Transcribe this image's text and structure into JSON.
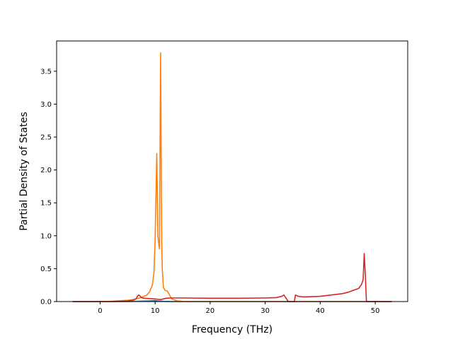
{
  "chart_data": {
    "type": "line",
    "title": "",
    "xlabel": "Frequency (THz)",
    "ylabel": "Partial Density of States",
    "xlim": [
      -7.9,
      55.9
    ],
    "ylim": [
      0,
      3.96
    ],
    "xticks": [
      0,
      10,
      20,
      30,
      40,
      50
    ],
    "yticks": [
      0.0,
      0.5,
      1.0,
      1.5,
      2.0,
      2.5,
      3.0,
      3.5
    ],
    "xtick_labels": [
      "0",
      "10",
      "20",
      "30",
      "40",
      "50"
    ],
    "ytick_labels": [
      "0.0",
      "0.5",
      "1.0",
      "1.5",
      "2.0",
      "2.5",
      "3.0",
      "3.5"
    ],
    "grid": false,
    "legend": "none",
    "series": [
      {
        "color": "#1f77b4",
        "x": [
          -5,
          0,
          5,
          7,
          9,
          10,
          10.5,
          11,
          11.5,
          12,
          13,
          53
        ],
        "y": [
          0,
          0,
          0,
          0.005,
          0.01,
          0.015,
          0.01,
          0.008,
          0.004,
          0.002,
          0,
          0
        ]
      },
      {
        "color": "#ff7f0e",
        "x": [
          -5,
          0,
          2,
          4,
          5,
          6,
          7,
          8,
          8.5,
          9,
          9.5,
          9.8,
          10,
          10.3,
          10.5,
          10.7,
          10.8,
          10.9,
          11.0,
          11.1,
          11.2,
          11.3,
          11.5,
          11.8,
          12.2,
          12.5,
          13,
          14,
          15,
          16,
          18,
          20,
          25,
          30,
          35,
          40,
          45,
          50,
          53
        ],
        "y": [
          0,
          0,
          0.005,
          0.015,
          0.02,
          0.03,
          0.05,
          0.08,
          0.1,
          0.15,
          0.25,
          0.45,
          0.95,
          2.25,
          1.0,
          0.85,
          0.8,
          2.5,
          3.78,
          2.2,
          0.9,
          0.5,
          0.22,
          0.17,
          0.16,
          0.12,
          0.04,
          0.01,
          0.004,
          0.001,
          0,
          0,
          0,
          0,
          0,
          0,
          0,
          0,
          0
        ]
      },
      {
        "color": "#d62728",
        "x": [
          -5,
          0,
          2,
          4,
          5,
          6,
          6.5,
          6.8,
          7.0,
          7.2,
          7.5,
          8,
          9,
          10,
          10.5,
          11,
          12,
          13,
          15,
          20,
          25,
          30,
          32,
          33,
          33.4,
          33.8,
          34.2,
          35,
          35.3,
          35.5,
          36,
          37,
          40,
          42,
          44,
          45,
          46,
          47,
          47.5,
          47.8,
          48.0,
          48.2,
          48.4,
          48.7,
          50,
          53
        ],
        "y": [
          0,
          0,
          0,
          0.005,
          0.01,
          0.02,
          0.04,
          0.08,
          0.1,
          0.09,
          0.06,
          0.05,
          0.045,
          0.04,
          0.035,
          0.03,
          0.05,
          0.055,
          0.055,
          0.05,
          0.05,
          0.055,
          0.06,
          0.08,
          0.1,
          0.05,
          0,
          0,
          0,
          0.1,
          0.08,
          0.07,
          0.08,
          0.1,
          0.12,
          0.14,
          0.17,
          0.2,
          0.26,
          0.33,
          0.73,
          0.4,
          0.01,
          0,
          0,
          0
        ]
      }
    ]
  }
}
